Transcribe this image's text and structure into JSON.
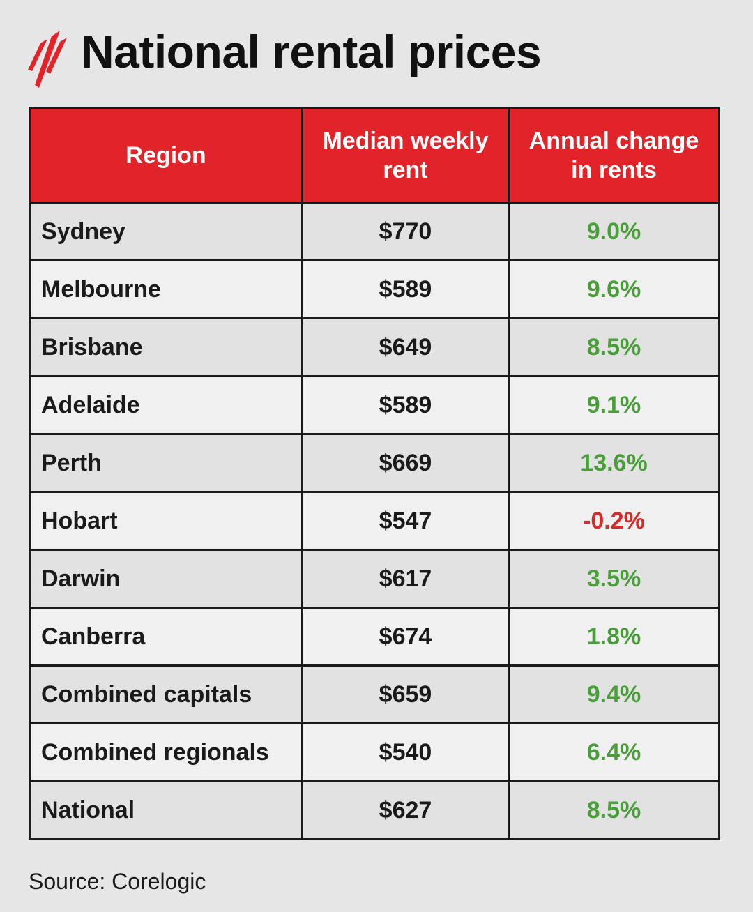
{
  "header": {
    "title": "National rental prices"
  },
  "table": {
    "headers": [
      "Region",
      "Median weekly rent",
      "Annual change in rents"
    ],
    "rows": [
      [
        "Sydney",
        "$770",
        "9.0%"
      ],
      [
        "Melbourne",
        "$589",
        "9.6%"
      ],
      [
        "Brisbane",
        "$649",
        "8.5%"
      ],
      [
        "Adelaide",
        "$589",
        "9.1%"
      ],
      [
        "Perth",
        "$669",
        "13.6%"
      ],
      [
        "Hobart",
        "$547",
        "-0.2%"
      ],
      [
        "Darwin",
        "$617",
        "3.5%"
      ],
      [
        "Canberra",
        "$674",
        "1.8%"
      ],
      [
        "Combined capitals",
        "$659",
        "9.4%"
      ],
      [
        "Combined regionals",
        "$540",
        "6.4%"
      ],
      [
        "National",
        "$627",
        "8.5%"
      ]
    ]
  },
  "footer": {
    "source": "Source: Corelogic"
  }
}
